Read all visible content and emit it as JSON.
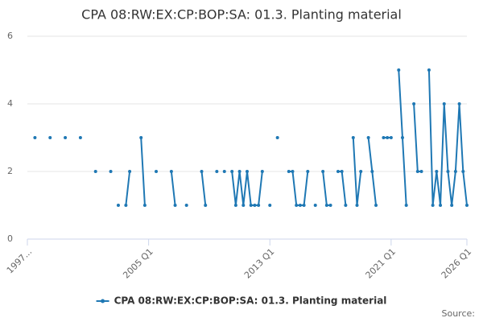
{
  "chart_data": {
    "type": "line",
    "title": "CPA 08:RW:EX:CP:BOP:SA: 01.3. Planting material",
    "source": "Source:",
    "x": [
      1997.5,
      1997.75,
      1998,
      1998.25,
      1998.5,
      1998.75,
      1999,
      1999.25,
      1999.5,
      1999.75,
      2000,
      2000.25,
      2000.5,
      2000.75,
      2001,
      2001.25,
      2001.5,
      2001.75,
      2002,
      2002.25,
      2002.5,
      2002.75,
      2003,
      2003.25,
      2003.5,
      2003.75,
      2004,
      2004.25,
      2004.5,
      2004.75,
      2005,
      2005.25,
      2005.5,
      2005.75,
      2006,
      2006.25,
      2006.5,
      2006.75,
      2007,
      2007.25,
      2007.5,
      2007.75,
      2008,
      2008.25,
      2008.5,
      2008.75,
      2009,
      2009.25,
      2009.5,
      2009.75,
      2010,
      2010.25,
      2010.5,
      2010.75,
      2011,
      2011.25,
      2011.5,
      2011.75,
      2012,
      2012.25,
      2012.5,
      2012.75,
      2013,
      2013.25,
      2013.5,
      2013.75,
      2014,
      2014.25,
      2014.5,
      2014.75,
      2015,
      2015.25,
      2015.5,
      2015.75,
      2016,
      2016.25,
      2016.5,
      2016.75,
      2017,
      2017.25,
      2017.5,
      2017.75,
      2018,
      2018.25,
      2018.5,
      2018.75,
      2019,
      2019.25,
      2019.5,
      2019.75,
      2020,
      2020.25,
      2020.5,
      2020.75,
      2021,
      2021.25,
      2021.5,
      2021.75,
      2022,
      2022.25,
      2022.5,
      2022.75,
      2023,
      2023.25,
      2023.5,
      2023.75,
      2024,
      2024.25,
      2024.5,
      2024.75,
      2025,
      2025.25,
      2025.5,
      2025.75,
      2026
    ],
    "series": [
      {
        "name": "CPA 08:RW:EX:CP:BOP:SA: 01.3. Planting material",
        "color": "#1f78b4",
        "values": [
          3,
          null,
          null,
          null,
          3,
          null,
          null,
          null,
          3,
          null,
          null,
          null,
          3,
          null,
          null,
          null,
          2,
          null,
          null,
          null,
          2,
          null,
          1,
          null,
          1,
          2,
          null,
          null,
          3,
          1,
          null,
          null,
          2,
          null,
          null,
          null,
          2,
          1,
          null,
          null,
          1,
          null,
          null,
          null,
          2,
          1,
          null,
          null,
          2,
          null,
          2,
          null,
          2,
          1,
          2,
          1,
          2,
          1,
          1,
          1,
          2,
          null,
          1,
          null,
          3,
          null,
          null,
          2,
          2,
          1,
          1,
          1,
          2,
          null,
          1,
          null,
          2,
          1,
          1,
          null,
          2,
          2,
          1,
          null,
          3,
          1,
          2,
          null,
          3,
          2,
          1,
          null,
          3,
          3,
          3,
          null,
          5,
          3,
          1,
          null,
          4,
          2,
          2,
          null,
          5,
          1,
          2,
          1,
          4,
          2,
          1,
          2,
          4,
          2,
          1
        ]
      }
    ],
    "xlim": [
      1997,
      2026
    ],
    "xticks": [
      {
        "value": 1997,
        "label": "1997..."
      },
      {
        "value": 2005,
        "label": "2005 Q1"
      },
      {
        "value": 2013,
        "label": "2013 Q1"
      },
      {
        "value": 2021,
        "label": "2021 Q1"
      },
      {
        "value": 2026,
        "label": "2026 Q1"
      }
    ],
    "ylim": [
      0,
      6
    ],
    "yticks": [
      0,
      2,
      4,
      6
    ],
    "grid": true
  }
}
